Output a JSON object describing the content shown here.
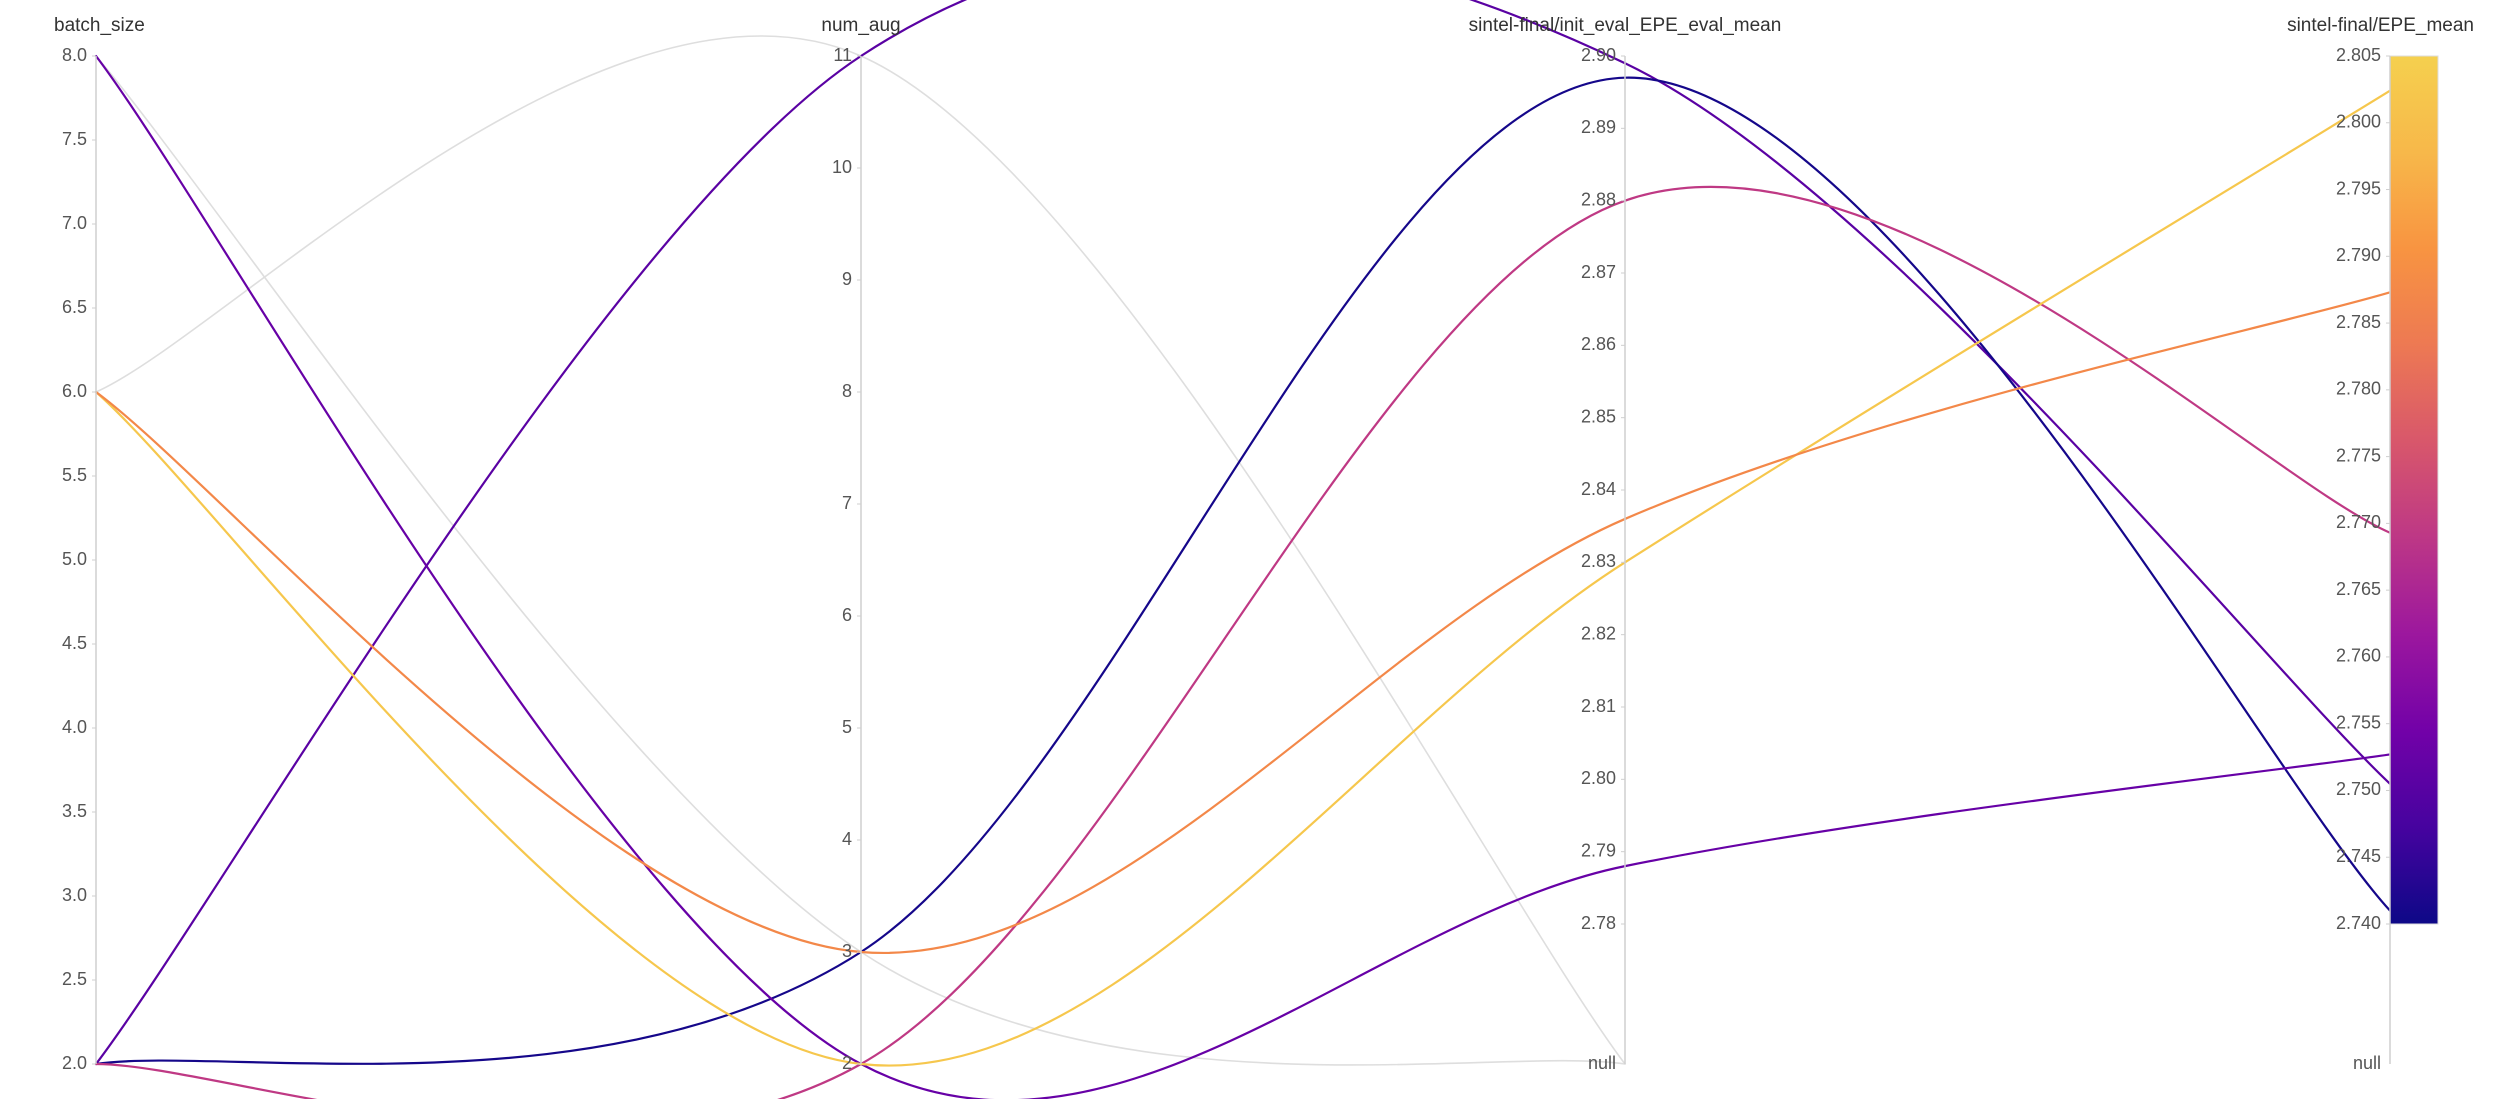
{
  "chart_data": {
    "type": "parallel_coordinates",
    "colorscale": [
      "#0d0887",
      "#46039f",
      "#7201a8",
      "#9c179e",
      "#bd3786",
      "#d8576b",
      "#ed7953",
      "#f89441",
      "#f7b84a",
      "#f5d04e"
    ],
    "null_color": "#dedede",
    "dimensions": [
      {
        "name": "batch_size",
        "ylim": [
          2,
          8
        ],
        "yticks": [
          {
            "value": 2,
            "label": "2.0"
          },
          2.5,
          {
            "value": 3,
            "label": "3.0"
          },
          3.5,
          {
            "value": 4,
            "label": "4.0"
          },
          4.5,
          {
            "value": 5,
            "label": "5.0"
          },
          5.5,
          {
            "value": 6,
            "label": "6.0"
          },
          6.5,
          {
            "value": 7,
            "label": "7.0"
          },
          7.5,
          {
            "value": 8,
            "label": "8.0"
          }
        ],
        "values": [
          2,
          2,
          8,
          2,
          6,
          6,
          6,
          8
        ]
      },
      {
        "name": "num_aug",
        "ylim": [
          2,
          11
        ],
        "yticks": [
          2,
          3,
          4,
          5,
          6,
          7,
          8,
          9,
          10,
          11
        ],
        "values": [
          11,
          3,
          2,
          2,
          2,
          3,
          11,
          3
        ]
      },
      {
        "name": "sintel-final/init_eval_EPE_eval_mean",
        "ylim": [
          2.78,
          2.9
        ],
        "yticks": [
          2.78,
          2.79,
          {
            "value": 2.8,
            "label": "2.80"
          },
          2.81,
          2.82,
          2.83,
          2.84,
          2.85,
          2.86,
          2.87,
          2.88,
          2.89,
          {
            "value": 2.9,
            "label": "2.90"
          }
        ],
        "null_label": "null",
        "values": [
          2.899,
          2.897,
          2.788,
          2.88,
          2.83,
          2.836,
          null,
          null
        ]
      },
      {
        "name": "sintel-final/EPE_mean",
        "ylim": [
          2.74,
          2.805
        ],
        "yticks": [
          {
            "value": 2.74,
            "label": "2.740"
          },
          2.745,
          {
            "value": 2.75,
            "label": "2.750"
          },
          2.755,
          {
            "value": 2.76,
            "label": "2.760"
          },
          2.765,
          {
            "value": 2.77,
            "label": "2.770"
          },
          2.775,
          {
            "value": 2.78,
            "label": "2.780"
          },
          2.785,
          {
            "value": 2.79,
            "label": "2.790"
          },
          2.795,
          {
            "value": 2.8,
            "label": "2.800"
          },
          2.805
        ],
        "null_label": "null",
        "colorbar": true,
        "values": [
          2.7505,
          2.741,
          2.7527,
          2.7693,
          2.8024,
          2.7873,
          null,
          null
        ]
      }
    ]
  }
}
